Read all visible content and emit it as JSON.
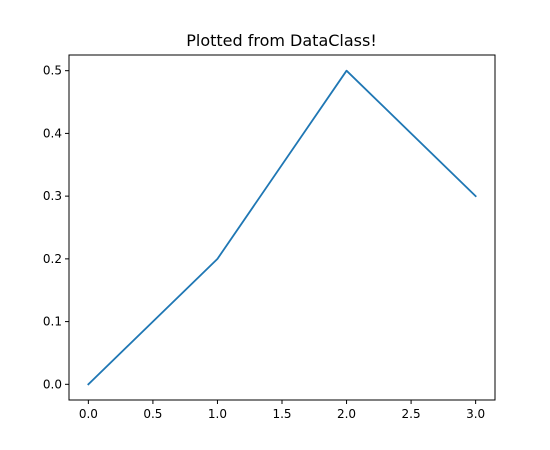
{
  "chart_data": {
    "type": "line",
    "title": "Plotted from DataClass!",
    "xlabel": "",
    "ylabel": "",
    "x": [
      0,
      1,
      2,
      3
    ],
    "series": [
      {
        "values": [
          0.0,
          0.2,
          0.5,
          0.3
        ],
        "color": "#1f77b4"
      }
    ],
    "xlim": [
      -0.15,
      3.15
    ],
    "ylim": [
      -0.025,
      0.525
    ],
    "xticks": [
      0.0,
      0.5,
      1.0,
      1.5,
      2.0,
      2.5,
      3.0
    ],
    "xtick_labels": [
      "0.0",
      "0.5",
      "1.0",
      "1.5",
      "2.0",
      "2.5",
      "3.0"
    ],
    "yticks": [
      0.0,
      0.1,
      0.2,
      0.3,
      0.4,
      0.5
    ],
    "ytick_labels": [
      "0.0",
      "0.1",
      "0.2",
      "0.3",
      "0.4",
      "0.5"
    ],
    "grid": false,
    "legend": "none"
  }
}
